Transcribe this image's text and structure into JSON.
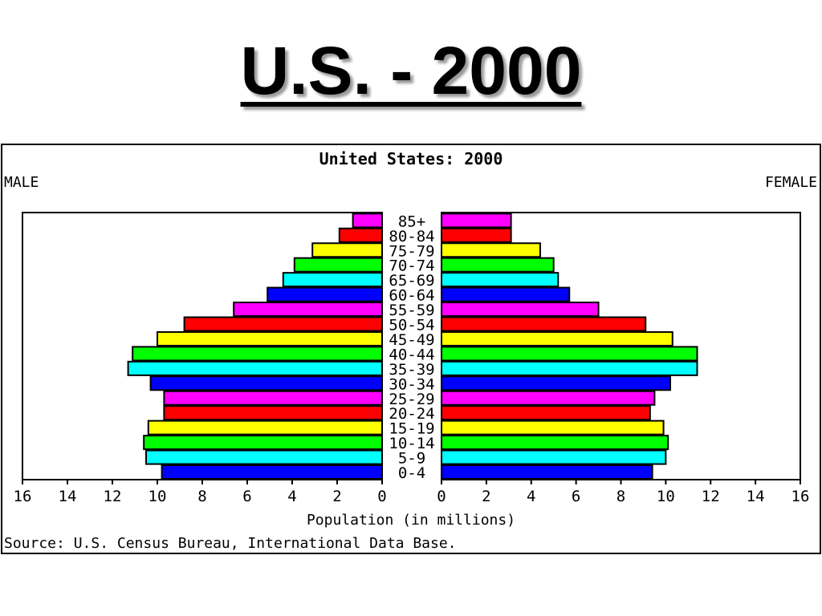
{
  "slide": {
    "title": "U.S. - 2000"
  },
  "chart_data": {
    "type": "bar",
    "orientation": "horizontal",
    "layout": "population-pyramid",
    "title": "United States: 2000",
    "left_label": "MALE",
    "right_label": "FEMALE",
    "xlabel": "Population (in millions)",
    "source": "Source: U.S. Census Bureau, International Data Base.",
    "xlim": [
      0,
      16
    ],
    "x_ticks": [
      "0",
      "2",
      "4",
      "6",
      "8",
      "10",
      "12",
      "14",
      "16"
    ],
    "x_ticks_reversed": [
      "16",
      "14",
      "12",
      "10",
      "8",
      "6",
      "4",
      "2",
      "0"
    ],
    "grid": false,
    "categories": [
      "0-4",
      "5-9",
      "10-14",
      "15-19",
      "20-24",
      "25-29",
      "30-34",
      "35-39",
      "40-44",
      "45-49",
      "50-54",
      "55-59",
      "60-64",
      "65-69",
      "70-74",
      "75-79",
      "80-84",
      "85+"
    ],
    "colors": [
      "#0000ff",
      "#00ffff",
      "#00ff00",
      "#ffff00",
      "#ff0000",
      "#ff00ff",
      "#0000ff",
      "#00ffff",
      "#00ff00",
      "#ffff00",
      "#ff0000",
      "#ff00ff",
      "#0000ff",
      "#00ffff",
      "#00ff00",
      "#ffff00",
      "#ff0000",
      "#ff00ff"
    ],
    "series": [
      {
        "name": "MALE",
        "side": "left",
        "values": [
          9.8,
          10.5,
          10.6,
          10.4,
          9.7,
          9.7,
          10.3,
          11.3,
          11.1,
          10.0,
          8.8,
          6.6,
          5.1,
          4.4,
          3.9,
          3.1,
          1.9,
          1.3
        ]
      },
      {
        "name": "FEMALE",
        "side": "right",
        "values": [
          9.4,
          10.0,
          10.1,
          9.9,
          9.3,
          9.5,
          10.2,
          11.4,
          11.4,
          10.3,
          9.1,
          7.0,
          5.7,
          5.2,
          5.0,
          4.4,
          3.1,
          3.1
        ]
      }
    ]
  }
}
